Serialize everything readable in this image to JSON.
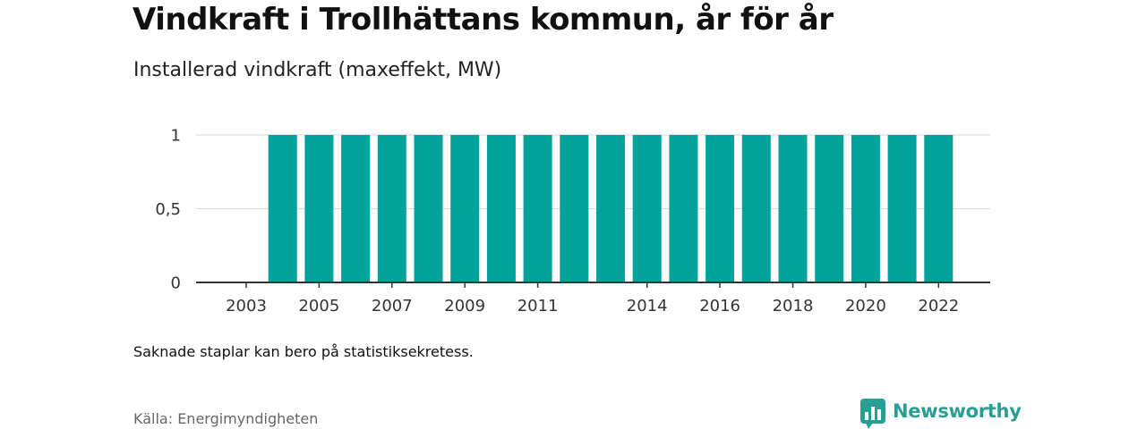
{
  "header": {
    "title": "Vindkraft i Trollhättans kommun, år för år",
    "subtitle": "Installerad vindkraft (maxeffekt, MW)"
  },
  "footer": {
    "note": "Saknade staplar kan bero på statistiksekretess.",
    "source": "Källa: Energimyndigheten",
    "brand": "Newsworthy"
  },
  "colors": {
    "bar": "#00a39a",
    "grid": "#dddddd",
    "axis": "#333333",
    "brand": "#2a9d95"
  },
  "chart_data": {
    "type": "bar",
    "title": "Vindkraft i Trollhättans kommun, år för år",
    "subtitle": "Installerad vindkraft (maxeffekt, MW)",
    "xlabel": "",
    "ylabel": "",
    "categories": [
      "2003",
      "2004",
      "2005",
      "2006",
      "2007",
      "2008",
      "2009",
      "2010",
      "2011",
      "2012",
      "2013",
      "2014",
      "2015",
      "2016",
      "2017",
      "2018",
      "2019",
      "2020",
      "2021",
      "2022"
    ],
    "values": [
      0,
      1,
      1,
      1,
      1,
      1,
      1,
      1,
      1,
      1,
      1,
      1,
      1,
      1,
      1,
      1,
      1,
      1,
      1,
      1
    ],
    "x_tick_labels": [
      "2003",
      "2005",
      "2007",
      "2009",
      "2011",
      "2014",
      "2016",
      "2018",
      "2020",
      "2022"
    ],
    "y_ticks": [
      0,
      0.5,
      1
    ],
    "y_tick_labels": [
      "0",
      "0,5",
      "1"
    ],
    "ylim": [
      0,
      1
    ],
    "grid": true,
    "legend": "none"
  }
}
